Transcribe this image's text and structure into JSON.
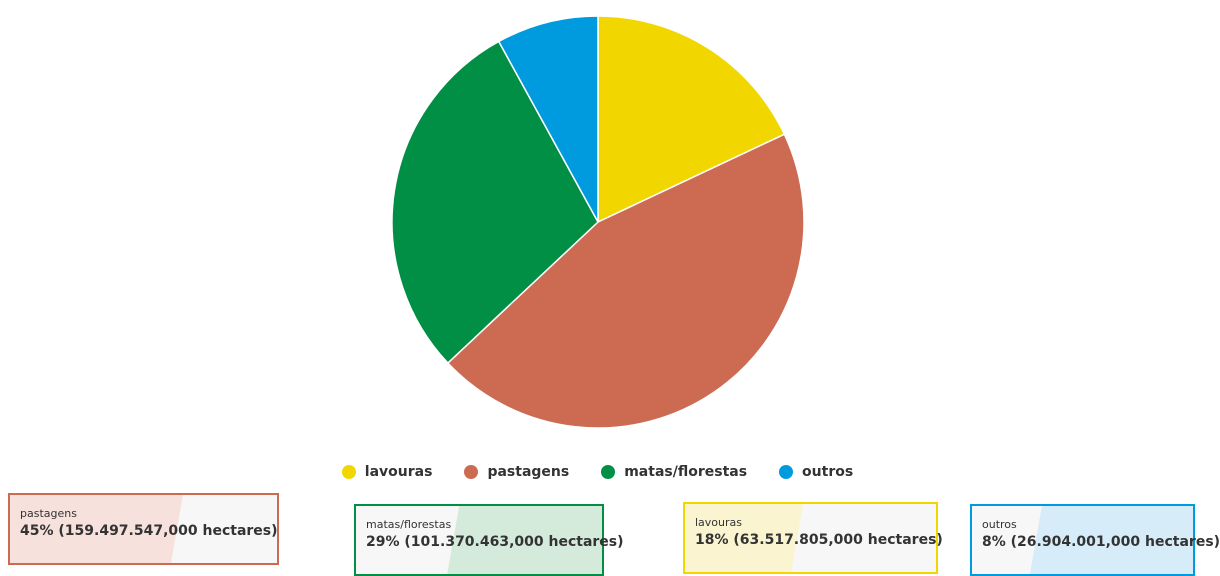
{
  "chart_data": {
    "type": "pie",
    "slices": [
      {
        "name": "lavouras",
        "percent": 18,
        "value": "63.517.805,000",
        "color": "#f2d600"
      },
      {
        "name": "pastagens",
        "percent": 45,
        "value": "159.497.547,000",
        "color": "#cc6a52"
      },
      {
        "name": "matas/florestas",
        "percent": 29,
        "value": "101.370.463,000",
        "color": "#008f45"
      },
      {
        "name": "outros",
        "percent": 8,
        "value": "26.904.001,000",
        "color": "#009bde"
      }
    ],
    "unit": "hectares",
    "legend_position": "bottom-center"
  },
  "tooltips": [
    {
      "label": "pastagens",
      "text": "45% (159.497.547,000 hectares)",
      "color": "#cc6a52"
    },
    {
      "label": "matas/florestas",
      "text": "29% (101.370.463,000 hectares)",
      "color": "#008f45"
    },
    {
      "label": "lavouras",
      "text": "18% (63.517.805,000 hectares)",
      "color": "#f2d600"
    },
    {
      "label": "outros",
      "text": "8% (26.904.001,000 hectares)",
      "color": "#009bde"
    }
  ]
}
